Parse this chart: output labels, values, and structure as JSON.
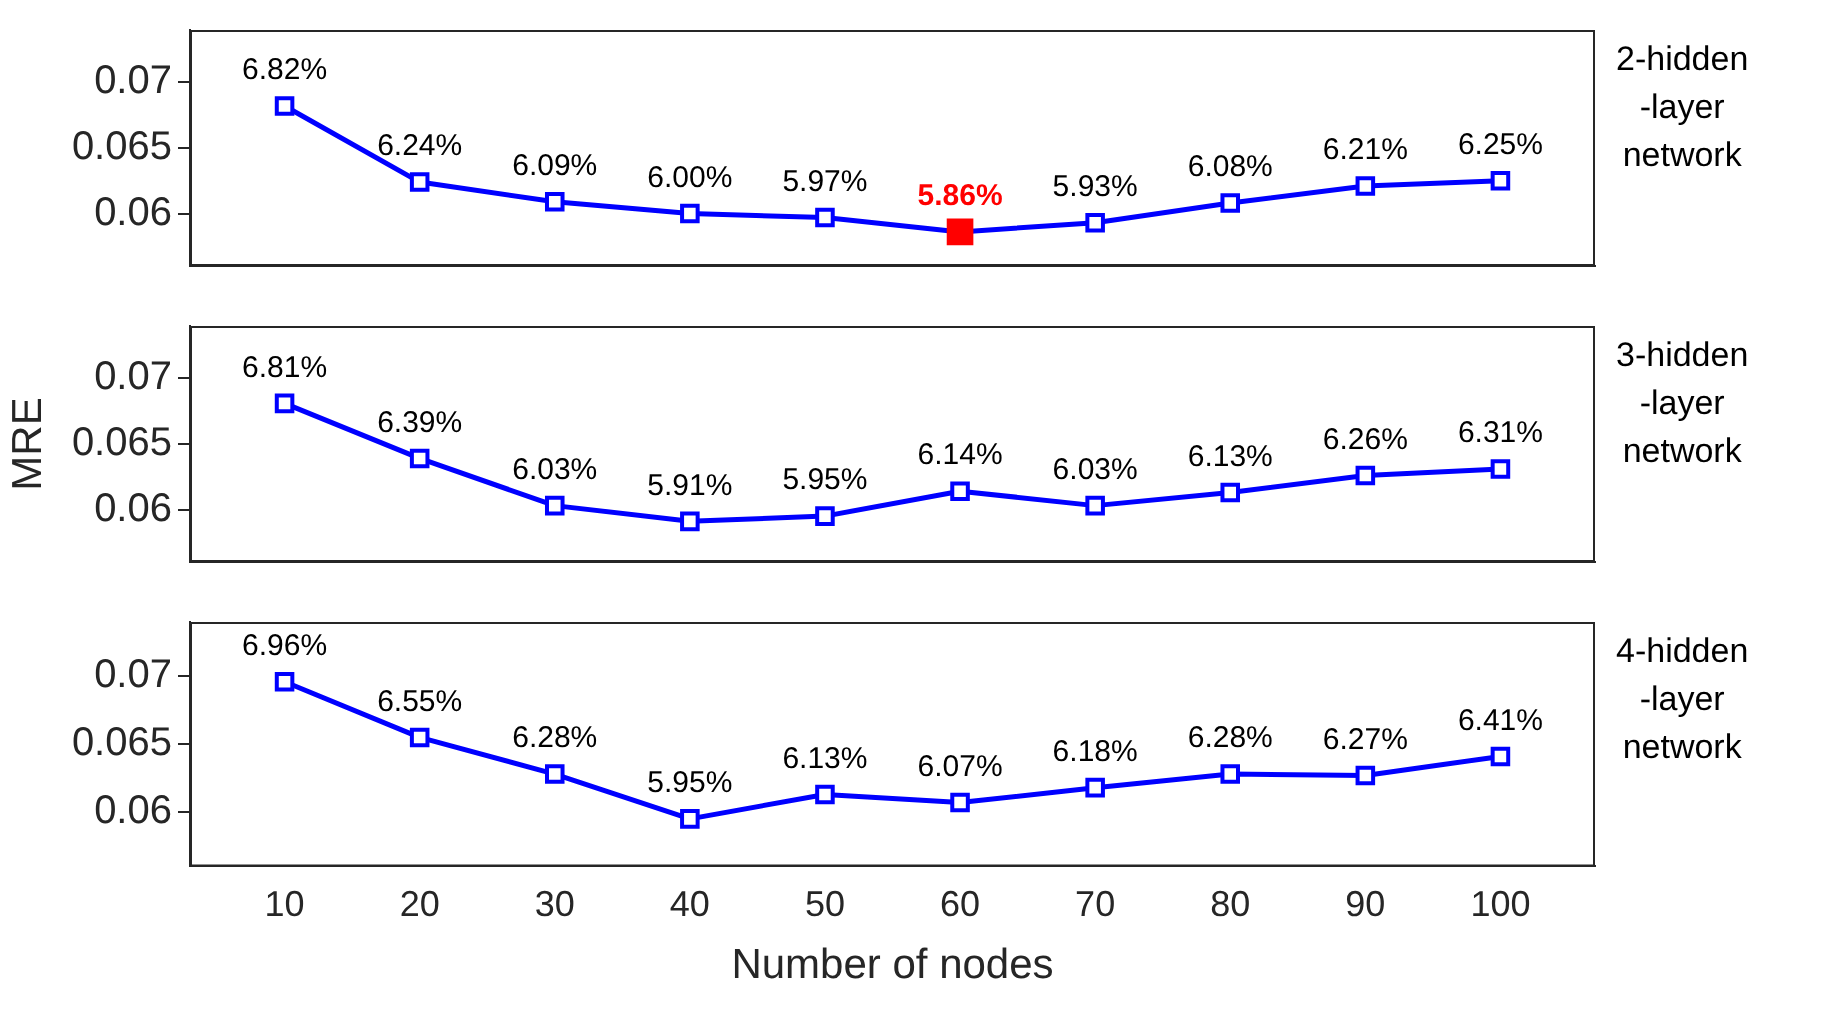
{
  "chart_data": [
    {
      "type": "line",
      "x": [
        10,
        20,
        30,
        40,
        50,
        60,
        70,
        80,
        90,
        100
      ],
      "xlim": [
        3,
        107
      ],
      "xticks": [
        10,
        20,
        30,
        40,
        50,
        60,
        70,
        80,
        90,
        100
      ],
      "ylim": [
        0.056,
        0.074
      ],
      "yticks": [
        0.06,
        0.065,
        0.07
      ],
      "grid": false,
      "legend": false,
      "marker": "square",
      "line_style": "solid",
      "tick_labels": "y",
      "annotations": [
        "2-hidden\n-layer\nnetwork"
      ],
      "series": [
        {
          "color": "#0000ff",
          "values": [
            0.0682,
            0.0624,
            0.0609,
            0.06,
            0.0597,
            0.0586,
            0.0593,
            0.0608,
            0.0621,
            0.0625
          ],
          "colors": [
            "#0000ff",
            "#0000ff",
            "#0000ff",
            "#0000ff",
            "#0000ff",
            "#ff0000",
            "#0000ff",
            "#0000ff",
            "#0000ff",
            "#0000ff"
          ],
          "value_labels": [
            "6.82%",
            "6.24%",
            "6.09%",
            "6.00%",
            "5.97%",
            "5.86%",
            "5.93%",
            "6.08%",
            "6.21%",
            "6.25%"
          ]
        }
      ]
    },
    {
      "type": "line",
      "x": [
        10,
        20,
        30,
        40,
        50,
        60,
        70,
        80,
        90,
        100
      ],
      "xlim": [
        3,
        107
      ],
      "xticks": [
        10,
        20,
        30,
        40,
        50,
        60,
        70,
        80,
        90,
        100
      ],
      "ylim": [
        0.056,
        0.074
      ],
      "yticks": [
        0.06,
        0.065,
        0.07
      ],
      "ylabel": "MRE",
      "grid": false,
      "legend": false,
      "marker": "square",
      "line_style": "solid",
      "tick_labels": "y",
      "annotations": [
        "3-hidden\n-layer\nnetwork"
      ],
      "series": [
        {
          "color": "#0000ff",
          "values": [
            0.0681,
            0.0639,
            0.0603,
            0.0591,
            0.0595,
            0.0614,
            0.0603,
            0.0613,
            0.0626,
            0.0631
          ],
          "value_labels": [
            "6.81%",
            "6.39%",
            "6.03%",
            "5.91%",
            "5.95%",
            "6.14%",
            "6.03%",
            "6.13%",
            "6.26%",
            "6.31%"
          ]
        }
      ]
    },
    {
      "type": "line",
      "x": [
        10,
        20,
        30,
        40,
        50,
        60,
        70,
        80,
        90,
        100
      ],
      "xlim": [
        3,
        107
      ],
      "xticks": [
        10,
        20,
        30,
        40,
        50,
        60,
        70,
        80,
        90,
        100
      ],
      "ylim": [
        0.056,
        0.074
      ],
      "yticks": [
        0.06,
        0.065,
        0.07
      ],
      "xlabel": "Number of nodes",
      "grid": false,
      "legend": false,
      "marker": "square",
      "line_style": "solid",
      "annotations": [
        "4-hidden\n-layer\nnetwork"
      ],
      "series": [
        {
          "color": "#0000ff",
          "values": [
            0.0696,
            0.0655,
            0.0628,
            0.0595,
            0.0613,
            0.0607,
            0.0618,
            0.0628,
            0.0627,
            0.0641
          ],
          "value_labels": [
            "6.96%",
            "6.55%",
            "6.28%",
            "5.95%",
            "6.13%",
            "6.07%",
            "6.18%",
            "6.28%",
            "6.27%",
            "6.41%"
          ]
        }
      ]
    }
  ]
}
